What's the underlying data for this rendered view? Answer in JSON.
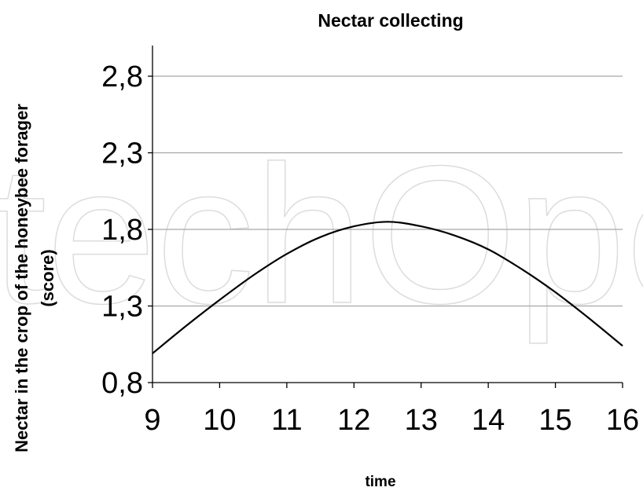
{
  "chart_data": {
    "type": "line",
    "title": "Nectar collecting",
    "xlabel": "time",
    "ylabel_line1": "Nectar in the crop of the honeybee forager",
    "ylabel_line2": "(score)",
    "xlim": [
      9,
      16
    ],
    "ylim": [
      0.8,
      3.0
    ],
    "x_ticks": [
      9,
      10,
      11,
      12,
      13,
      14,
      15,
      16
    ],
    "x_tick_labels": [
      "9",
      "10",
      "11",
      "12",
      "13",
      "14",
      "15",
      "16"
    ],
    "y_ticks": [
      0.8,
      1.3,
      1.8,
      2.3,
      2.8
    ],
    "y_tick_labels": [
      "0,8",
      "1,3",
      "1,8",
      "2,3",
      "2,8"
    ],
    "grid": "horizontal",
    "series": [
      {
        "color": "#000000",
        "x": [
          9,
          9.5,
          10,
          10.5,
          11,
          11.5,
          12,
          12.5,
          13,
          13.5,
          14,
          14.5,
          15,
          15.5,
          16
        ],
        "values": [
          0.99,
          1.17,
          1.34,
          1.5,
          1.64,
          1.75,
          1.82,
          1.85,
          1.82,
          1.76,
          1.67,
          1.54,
          1.39,
          1.22,
          1.04
        ]
      }
    ]
  },
  "watermark": "techOpen"
}
